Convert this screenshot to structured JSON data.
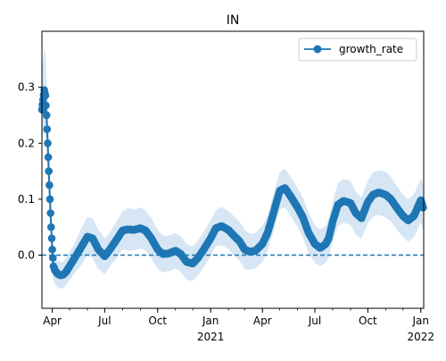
{
  "chart_data": {
    "type": "line",
    "title": "IN",
    "xlabel": "",
    "ylabel": "",
    "series": [
      {
        "name": "growth_rate",
        "color": "#1f77b4",
        "marker": "circle",
        "x": [
          "2020-03-14",
          "2020-03-18",
          "2020-03-20",
          "2020-03-22",
          "2020-03-24",
          "2020-03-26",
          "2020-03-28",
          "2020-03-30",
          "2020-04-01",
          "2020-04-03",
          "2020-04-06",
          "2020-04-10",
          "2020-04-15",
          "2020-04-20",
          "2020-04-25",
          "2020-05-01",
          "2020-05-10",
          "2020-05-20",
          "2020-06-01",
          "2020-06-10",
          "2020-06-20",
          "2020-07-01",
          "2020-07-10",
          "2020-07-20",
          "2020-08-01",
          "2020-08-10",
          "2020-08-20",
          "2020-09-01",
          "2020-09-10",
          "2020-09-20",
          "2020-10-01",
          "2020-10-10",
          "2020-10-20",
          "2020-11-01",
          "2020-11-10",
          "2020-11-20",
          "2020-12-01",
          "2020-12-10",
          "2020-12-20",
          "2021-01-01",
          "2021-01-10",
          "2021-01-20",
          "2021-02-01",
          "2021-02-10",
          "2021-02-20",
          "2021-03-01",
          "2021-03-10",
          "2021-03-20",
          "2021-04-01",
          "2021-04-10",
          "2021-04-20",
          "2021-05-01",
          "2021-05-10",
          "2021-05-20",
          "2021-06-01",
          "2021-06-10",
          "2021-06-20",
          "2021-07-01",
          "2021-07-10",
          "2021-07-15",
          "2021-07-20",
          "2021-07-25",
          "2021-08-01",
          "2021-08-10",
          "2021-08-20",
          "2021-09-01",
          "2021-09-10",
          "2021-09-20",
          "2021-10-01",
          "2021-10-10",
          "2021-10-20",
          "2021-11-01",
          "2021-11-10",
          "2021-11-20",
          "2021-12-01",
          "2021-12-10",
          "2021-12-20",
          "2022-01-01",
          "2022-01-05"
        ],
        "y": [
          0.26,
          0.295,
          0.285,
          0.25,
          0.2,
          0.15,
          0.1,
          0.05,
          0.01,
          -0.02,
          -0.028,
          -0.033,
          -0.036,
          -0.035,
          -0.03,
          -0.02,
          -0.005,
          0.012,
          0.033,
          0.03,
          0.01,
          -0.002,
          0.01,
          0.025,
          0.044,
          0.046,
          0.045,
          0.048,
          0.044,
          0.03,
          0.01,
          0.002,
          0.003,
          0.008,
          0.002,
          -0.012,
          -0.015,
          -0.005,
          0.01,
          0.03,
          0.048,
          0.052,
          0.045,
          0.035,
          0.025,
          0.01,
          0.006,
          0.008,
          0.02,
          0.04,
          0.075,
          0.115,
          0.12,
          0.105,
          0.085,
          0.068,
          0.04,
          0.02,
          0.013,
          0.016,
          0.02,
          0.03,
          0.06,
          0.09,
          0.097,
          0.093,
          0.075,
          0.066,
          0.095,
          0.108,
          0.112,
          0.108,
          0.1,
          0.085,
          0.07,
          0.062,
          0.07,
          0.098,
          0.085
        ],
        "ci_upper": [
          0.33,
          0.37,
          0.36,
          0.31,
          0.26,
          0.2,
          0.14,
          0.08,
          0.04,
          0.005,
          -0.005,
          -0.01,
          -0.012,
          -0.012,
          -0.005,
          0.005,
          0.022,
          0.045,
          0.068,
          0.066,
          0.045,
          0.03,
          0.04,
          0.058,
          0.078,
          0.084,
          0.082,
          0.085,
          0.08,
          0.066,
          0.045,
          0.035,
          0.035,
          0.04,
          0.034,
          0.02,
          0.015,
          0.026,
          0.042,
          0.062,
          0.08,
          0.086,
          0.079,
          0.07,
          0.06,
          0.045,
          0.038,
          0.04,
          0.052,
          0.072,
          0.108,
          0.148,
          0.155,
          0.14,
          0.12,
          0.104,
          0.076,
          0.054,
          0.046,
          0.049,
          0.053,
          0.064,
          0.096,
          0.128,
          0.136,
          0.132,
          0.113,
          0.103,
          0.133,
          0.148,
          0.152,
          0.149,
          0.14,
          0.124,
          0.108,
          0.1,
          0.108,
          0.138,
          0.126
        ],
        "ci_lower": [
          0.2,
          0.22,
          0.215,
          0.19,
          0.145,
          0.1,
          0.06,
          0.02,
          -0.02,
          -0.045,
          -0.052,
          -0.057,
          -0.06,
          -0.059,
          -0.054,
          -0.045,
          -0.032,
          -0.02,
          0.0,
          -0.005,
          -0.025,
          -0.034,
          -0.02,
          -0.008,
          0.01,
          0.008,
          0.008,
          0.012,
          0.008,
          -0.006,
          -0.025,
          -0.031,
          -0.029,
          -0.024,
          -0.03,
          -0.044,
          -0.046,
          -0.036,
          -0.022,
          -0.002,
          0.016,
          0.018,
          0.011,
          0.0,
          -0.01,
          -0.025,
          -0.026,
          -0.024,
          -0.012,
          0.008,
          0.042,
          0.082,
          0.085,
          0.07,
          0.05,
          0.032,
          0.004,
          -0.014,
          -0.02,
          -0.017,
          -0.013,
          -0.004,
          0.024,
          0.052,
          0.058,
          0.054,
          0.037,
          0.029,
          0.057,
          0.068,
          0.072,
          0.067,
          0.06,
          0.046,
          0.032,
          0.024,
          0.032,
          0.058,
          0.044
        ]
      }
    ],
    "reference_line": {
      "y": 0.0,
      "style": "dashed",
      "color": "#1f77b4"
    },
    "band_color": "#d6e6f4",
    "xlim": [
      "2020-03-14",
      "2022-01-06"
    ],
    "ylim": [
      -0.095,
      0.4
    ],
    "yticks": [
      0.0,
      0.1,
      0.2,
      0.3
    ],
    "ytick_labels": [
      "0.0",
      "0.1",
      "0.2",
      "0.3"
    ],
    "xticks": [
      {
        "date": "2020-04-01",
        "label": "Apr",
        "sublabel": ""
      },
      {
        "date": "2020-07-01",
        "label": "Jul",
        "sublabel": ""
      },
      {
        "date": "2020-10-01",
        "label": "Oct",
        "sublabel": ""
      },
      {
        "date": "2021-01-01",
        "label": "Jan",
        "sublabel": "2021"
      },
      {
        "date": "2021-04-01",
        "label": "Apr",
        "sublabel": ""
      },
      {
        "date": "2021-07-01",
        "label": "Jul",
        "sublabel": ""
      },
      {
        "date": "2021-10-01",
        "label": "Oct",
        "sublabel": ""
      },
      {
        "date": "2022-01-01",
        "label": "Jan",
        "sublabel": "2022"
      }
    ],
    "grid": false,
    "legend": {
      "position": "top-right",
      "entries": [
        "growth_rate"
      ]
    }
  }
}
